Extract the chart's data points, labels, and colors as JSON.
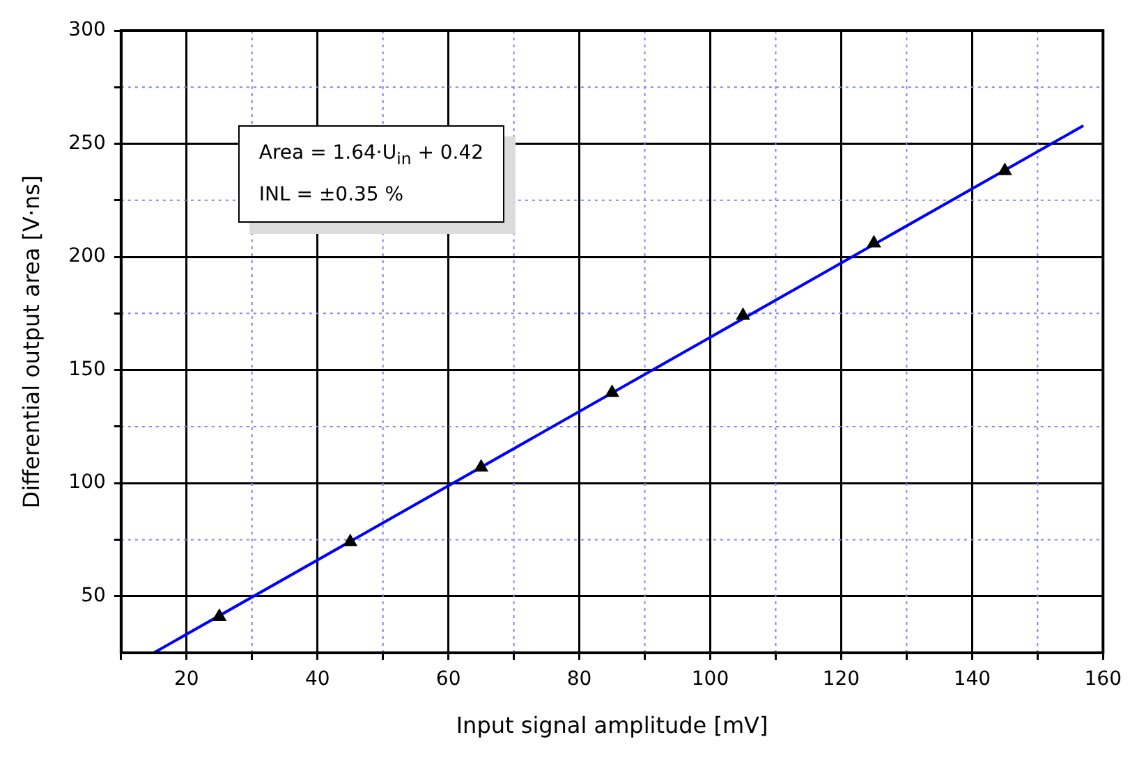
{
  "chart_data": {
    "type": "scatter",
    "xlabel": "Input signal amplitude [mV]",
    "ylabel": "Differential output area [V·ns]",
    "x": [
      25,
      45,
      65,
      85,
      105,
      125,
      145
    ],
    "series": [
      {
        "type": "scatter",
        "color": "#000000",
        "marker": "triangle",
        "values": [
          41,
          74,
          107,
          140,
          174,
          206,
          238
        ]
      },
      {
        "type": "line",
        "color": "#0000ff",
        "marker": "none",
        "x": [
          15,
          157
        ],
        "values": [
          25,
          258
        ]
      }
    ],
    "xlim": [
      10,
      160
    ],
    "xticks": [
      {
        "value": 10,
        "label": null
      },
      20,
      {
        "value": 30,
        "label": null
      },
      40,
      {
        "value": 50,
        "label": null
      },
      60,
      {
        "value": 70,
        "label": null
      },
      80,
      {
        "value": 90,
        "label": null
      },
      100,
      {
        "value": 110,
        "label": null
      },
      120,
      {
        "value": 130,
        "label": null
      },
      140,
      {
        "value": 150,
        "label": null
      },
      160
    ],
    "ylim": [
      25,
      300
    ],
    "yticks": [
      50,
      {
        "value": 75,
        "label": null
      },
      100,
      {
        "value": 125,
        "label": null
      },
      150,
      {
        "value": 175,
        "label": null
      },
      200,
      {
        "value": 225,
        "label": null
      },
      250,
      {
        "value": 275,
        "label": null
      },
      300
    ],
    "grid": true,
    "legend": false,
    "annotations": [
      "Area = 1.64·U$_{in}$ + 0.42",
      "INL = ±0.35 %"
    ]
  }
}
